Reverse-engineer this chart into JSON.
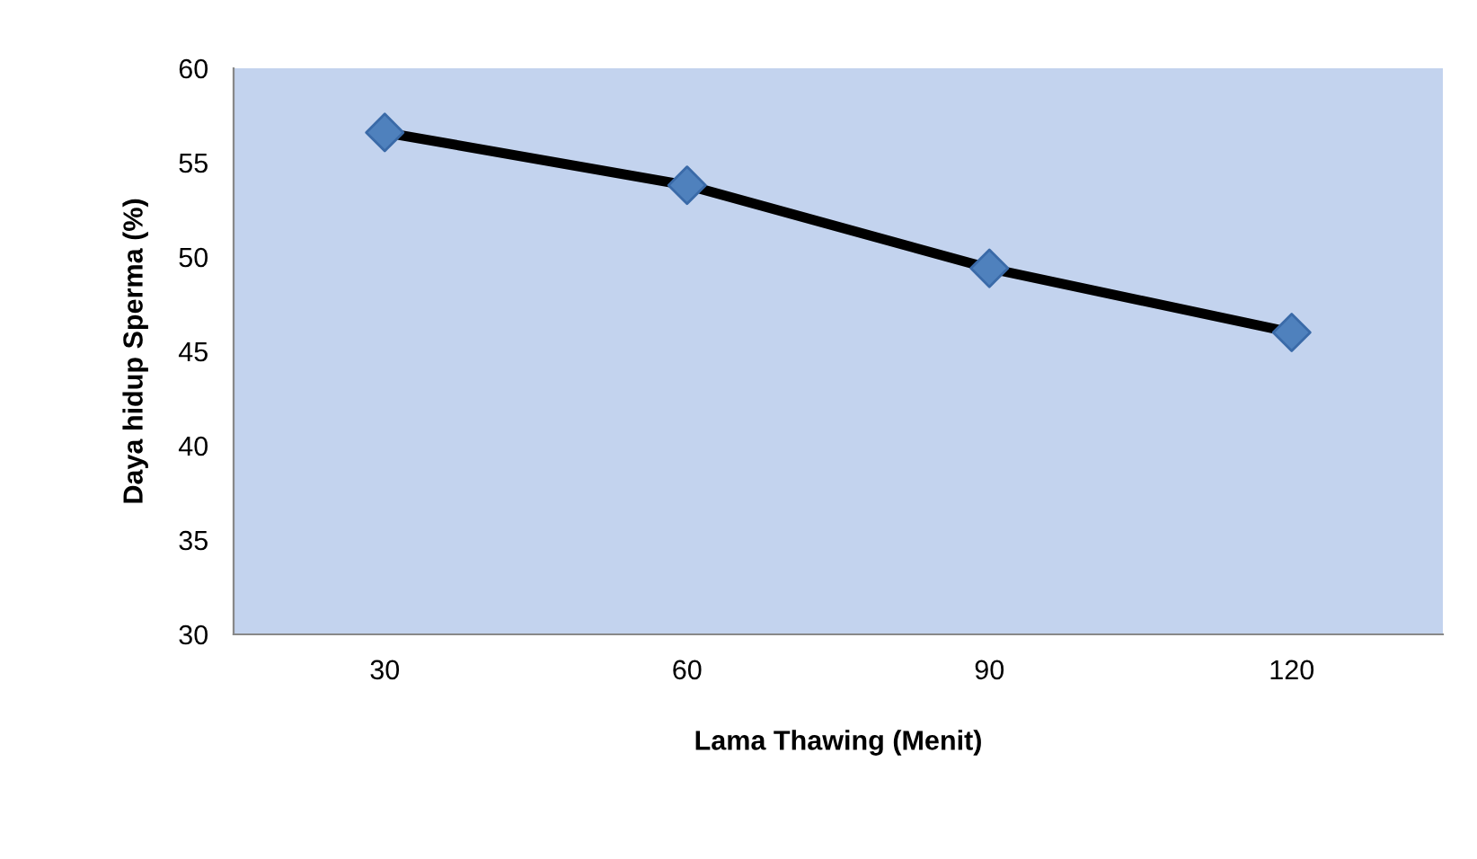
{
  "chart_data": {
    "type": "line",
    "xlabel": "Lama Thawing (Menit)",
    "ylabel": "Daya hidup Sperma (%)",
    "categories": [
      "30",
      "60",
      "90",
      "120"
    ],
    "series": [
      {
        "color": "#000000",
        "colors": [
          "#4f81bd",
          "#4f81bd",
          "#4f81bd",
          "#4f81bd"
        ],
        "values": [
          56.6,
          53.8,
          49.4,
          46.0
        ]
      }
    ],
    "ylim": [
      30,
      60
    ],
    "yticks": [
      30,
      35,
      40,
      45,
      50,
      55,
      60
    ],
    "grid": false,
    "legend": false,
    "marker": "diamond",
    "line_style": "solid"
  }
}
